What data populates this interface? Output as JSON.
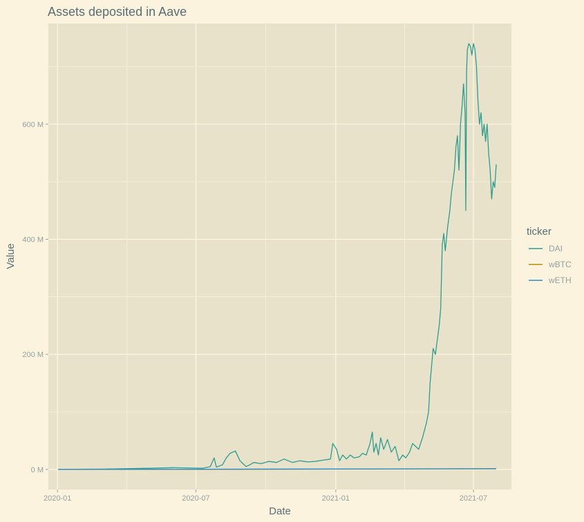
{
  "chart_data": {
    "type": "line",
    "title": "Assets deposited in Aave",
    "xlabel": "Date",
    "ylabel": "Value",
    "x_ticks": [
      "2020-01",
      "2020-07",
      "2021-01",
      "2021-07"
    ],
    "y_ticks": [
      "0 M",
      "200 M",
      "400 M",
      "600 M"
    ],
    "ylim_millions": [
      -35,
      775
    ],
    "xlim": [
      "2019-12-20",
      "2021-08-20"
    ],
    "legend": {
      "title": "ticker",
      "position": "right"
    },
    "grid": true,
    "series": [
      {
        "name": "DAI",
        "color": "#2a9d8f",
        "points": [
          [
            "2020-01-02",
            0
          ],
          [
            "2020-03-01",
            0.5
          ],
          [
            "2020-05-01",
            2
          ],
          [
            "2020-06-01",
            3
          ],
          [
            "2020-07-10",
            2
          ],
          [
            "2020-07-20",
            5
          ],
          [
            "2020-07-25",
            20
          ],
          [
            "2020-07-28",
            4
          ],
          [
            "2020-08-05",
            8
          ],
          [
            "2020-08-10",
            20
          ],
          [
            "2020-08-15",
            28
          ],
          [
            "2020-08-22",
            32
          ],
          [
            "2020-08-28",
            15
          ],
          [
            "2020-09-01",
            10
          ],
          [
            "2020-09-05",
            5
          ],
          [
            "2020-09-10",
            8
          ],
          [
            "2020-09-15",
            12
          ],
          [
            "2020-09-25",
            10
          ],
          [
            "2020-10-05",
            14
          ],
          [
            "2020-10-15",
            12
          ],
          [
            "2020-10-25",
            18
          ],
          [
            "2020-11-05",
            12
          ],
          [
            "2020-11-15",
            15
          ],
          [
            "2020-11-25",
            13
          ],
          [
            "2020-12-05",
            14
          ],
          [
            "2020-12-15",
            16
          ],
          [
            "2020-12-25",
            18
          ],
          [
            "2020-12-28",
            45
          ],
          [
            "2021-01-02",
            35
          ],
          [
            "2021-01-06",
            15
          ],
          [
            "2021-01-10",
            25
          ],
          [
            "2021-01-15",
            18
          ],
          [
            "2021-01-20",
            25
          ],
          [
            "2021-01-25",
            20
          ],
          [
            "2021-02-01",
            22
          ],
          [
            "2021-02-05",
            28
          ],
          [
            "2021-02-10",
            25
          ],
          [
            "2021-02-15",
            45
          ],
          [
            "2021-02-18",
            65
          ],
          [
            "2021-02-20",
            30
          ],
          [
            "2021-02-23",
            45
          ],
          [
            "2021-02-26",
            25
          ],
          [
            "2021-03-01",
            55
          ],
          [
            "2021-03-05",
            35
          ],
          [
            "2021-03-10",
            52
          ],
          [
            "2021-03-15",
            30
          ],
          [
            "2021-03-20",
            40
          ],
          [
            "2021-03-25",
            15
          ],
          [
            "2021-03-30",
            25
          ],
          [
            "2021-04-03",
            20
          ],
          [
            "2021-04-08",
            30
          ],
          [
            "2021-04-12",
            45
          ],
          [
            "2021-04-16",
            40
          ],
          [
            "2021-04-20",
            35
          ],
          [
            "2021-04-25",
            55
          ],
          [
            "2021-04-30",
            80
          ],
          [
            "2021-05-03",
            100
          ],
          [
            "2021-05-05",
            150
          ],
          [
            "2021-05-07",
            180
          ],
          [
            "2021-05-09",
            210
          ],
          [
            "2021-05-12",
            200
          ],
          [
            "2021-05-15",
            230
          ],
          [
            "2021-05-17",
            250
          ],
          [
            "2021-05-19",
            280
          ],
          [
            "2021-05-21",
            390
          ],
          [
            "2021-05-23",
            410
          ],
          [
            "2021-05-25",
            380
          ],
          [
            "2021-05-28",
            420
          ],
          [
            "2021-05-31",
            450
          ],
          [
            "2021-06-02",
            480
          ],
          [
            "2021-06-04",
            500
          ],
          [
            "2021-06-06",
            520
          ],
          [
            "2021-06-08",
            560
          ],
          [
            "2021-06-10",
            580
          ],
          [
            "2021-06-12",
            520
          ],
          [
            "2021-06-14",
            600
          ],
          [
            "2021-06-16",
            630
          ],
          [
            "2021-06-18",
            670
          ],
          [
            "2021-06-20",
            620
          ],
          [
            "2021-06-21",
            450
          ],
          [
            "2021-06-22",
            690
          ],
          [
            "2021-06-23",
            730
          ],
          [
            "2021-06-25",
            740
          ],
          [
            "2021-06-27",
            735
          ],
          [
            "2021-06-29",
            720
          ],
          [
            "2021-07-01",
            740
          ],
          [
            "2021-07-03",
            730
          ],
          [
            "2021-07-05",
            700
          ],
          [
            "2021-07-07",
            640
          ],
          [
            "2021-07-09",
            600
          ],
          [
            "2021-07-11",
            620
          ],
          [
            "2021-07-13",
            580
          ],
          [
            "2021-07-15",
            600
          ],
          [
            "2021-07-17",
            570
          ],
          [
            "2021-07-19",
            600
          ],
          [
            "2021-07-21",
            550
          ],
          [
            "2021-07-23",
            520
          ],
          [
            "2021-07-25",
            470
          ],
          [
            "2021-07-27",
            500
          ],
          [
            "2021-07-29",
            490
          ],
          [
            "2021-07-31",
            530
          ]
        ]
      },
      {
        "name": "wBTC",
        "color": "#b58900",
        "points": [
          [
            "2020-01-02",
            0
          ],
          [
            "2020-07-01",
            0.2
          ],
          [
            "2021-01-01",
            0.5
          ],
          [
            "2021-07-31",
            1.5
          ]
        ]
      },
      {
        "name": "wETH",
        "color": "#268bd2",
        "points": [
          [
            "2020-01-02",
            0
          ],
          [
            "2020-07-01",
            0.3
          ],
          [
            "2021-01-01",
            0.6
          ],
          [
            "2021-07-31",
            1.0
          ]
        ]
      }
    ]
  }
}
